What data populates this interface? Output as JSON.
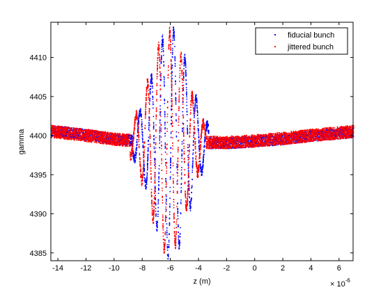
{
  "chart_data": {
    "type": "scatter",
    "xlabel": "z (m)",
    "x_exponent_label": "× 10",
    "x_exponent_power": "-6",
    "ylabel": "gamma",
    "xlim": [
      -14.5,
      7
    ],
    "ylim": [
      4384,
      4414.5
    ],
    "x_ticks": [
      -14,
      -12,
      -10,
      -8,
      -6,
      -4,
      -2,
      0,
      2,
      4,
      6
    ],
    "x_tick_labels": [
      "-14",
      "-12",
      "-10",
      "-8",
      "-6",
      "-4",
      "-2",
      "0",
      "2",
      "4",
      "6"
    ],
    "y_ticks": [
      4385,
      4390,
      4395,
      4400,
      4405,
      4410
    ],
    "y_tick_labels": [
      "4385",
      "4390",
      "4395",
      "4400",
      "4405",
      "4410"
    ],
    "legend_position": "top-right",
    "series": [
      {
        "name": "fiducial bunch",
        "color": "#0000ff",
        "marker": "dot",
        "baseline": [
          [
            -14.5,
            4400.7
          ],
          [
            -12,
            4400.2
          ],
          [
            -10,
            4399.6
          ],
          [
            -8.5,
            4399.4
          ],
          [
            -4,
            4399.1
          ],
          [
            -2,
            4399.1
          ],
          [
            0,
            4399.3
          ],
          [
            2,
            4399.6
          ],
          [
            4,
            4400.0
          ],
          [
            7,
            4400.5
          ]
        ],
        "band_halfwidth": 0.7,
        "oscillation": {
          "center": -6.0,
          "amplitude": 14.0,
          "sigma": 1.25,
          "period": 0.8,
          "extent": [
            -8.7,
            -3.3
          ]
        }
      },
      {
        "name": "jittered bunch",
        "color": "#ff0000",
        "marker": "dot",
        "baseline": [
          [
            -14.5,
            4400.6
          ],
          [
            -12,
            4400.1
          ],
          [
            -10,
            4399.6
          ],
          [
            -8.5,
            4399.4
          ],
          [
            -4,
            4399.2
          ],
          [
            -2,
            4399.2
          ],
          [
            0,
            4399.4
          ],
          [
            2,
            4399.7
          ],
          [
            4,
            4400.1
          ],
          [
            7,
            4400.6
          ]
        ],
        "band_halfwidth": 0.8,
        "oscillation": {
          "center": -6.2,
          "amplitude": 13.5,
          "sigma": 1.25,
          "period": 0.8,
          "extent": [
            -8.9,
            -3.5
          ]
        }
      }
    ]
  }
}
